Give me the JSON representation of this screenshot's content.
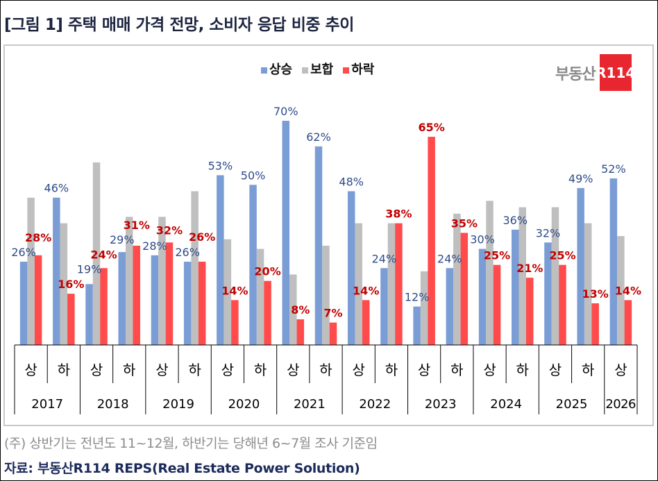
{
  "title": "[그림 1] 주택 매매 가격 전망, 소비자 응답 비중 추이",
  "logo": {
    "text": "부동산",
    "badge": "R114"
  },
  "note": "(주) 상반기는 전년도 11~12월, 하반기는 당해년 6~7월 조사 기준임",
  "source": "자료: 부동산R114 REPS(Real Estate Power Solution)",
  "chart_data": {
    "type": "bar",
    "ylim": [
      0,
      70
    ],
    "grid": false,
    "legend_placement": "top",
    "unit": "%",
    "categories": [
      "상",
      "하",
      "상",
      "하",
      "상",
      "하",
      "상",
      "하",
      "상",
      "하",
      "상",
      "하",
      "상",
      "하",
      "상",
      "하",
      "상",
      "하",
      "상"
    ],
    "years": [
      {
        "label": "2017",
        "span": 2
      },
      {
        "label": "2018",
        "span": 2
      },
      {
        "label": "2019",
        "span": 2
      },
      {
        "label": "2020",
        "span": 2
      },
      {
        "label": "2021",
        "span": 2
      },
      {
        "label": "2022",
        "span": 2
      },
      {
        "label": "2023",
        "span": 2
      },
      {
        "label": "2024",
        "span": 2
      },
      {
        "label": "2025",
        "span": 2
      },
      {
        "label": "2026",
        "span": 1
      }
    ],
    "series": [
      {
        "name": "상승",
        "color": "#7b9dd6",
        "label_color": "#2f4b8a",
        "labeled": true,
        "values": [
          26,
          46,
          19,
          29,
          28,
          26,
          53,
          50,
          70,
          62,
          48,
          24,
          12,
          24,
          30,
          36,
          32,
          49,
          52
        ]
      },
      {
        "name": "보합",
        "color": "#bfbfbf",
        "label_color": "#666666",
        "labeled": false,
        "values": [
          46,
          38,
          57,
          40,
          40,
          48,
          33,
          30,
          22,
          31,
          38,
          38,
          23,
          41,
          45,
          43,
          43,
          38,
          34
        ]
      },
      {
        "name": "하락",
        "color": "#ff4b4b",
        "label_color": "#c00000",
        "labeled": true,
        "values": [
          28,
          16,
          24,
          31,
          32,
          26,
          14,
          20,
          8,
          7,
          14,
          38,
          65,
          35,
          25,
          21,
          25,
          13,
          14
        ]
      }
    ]
  }
}
